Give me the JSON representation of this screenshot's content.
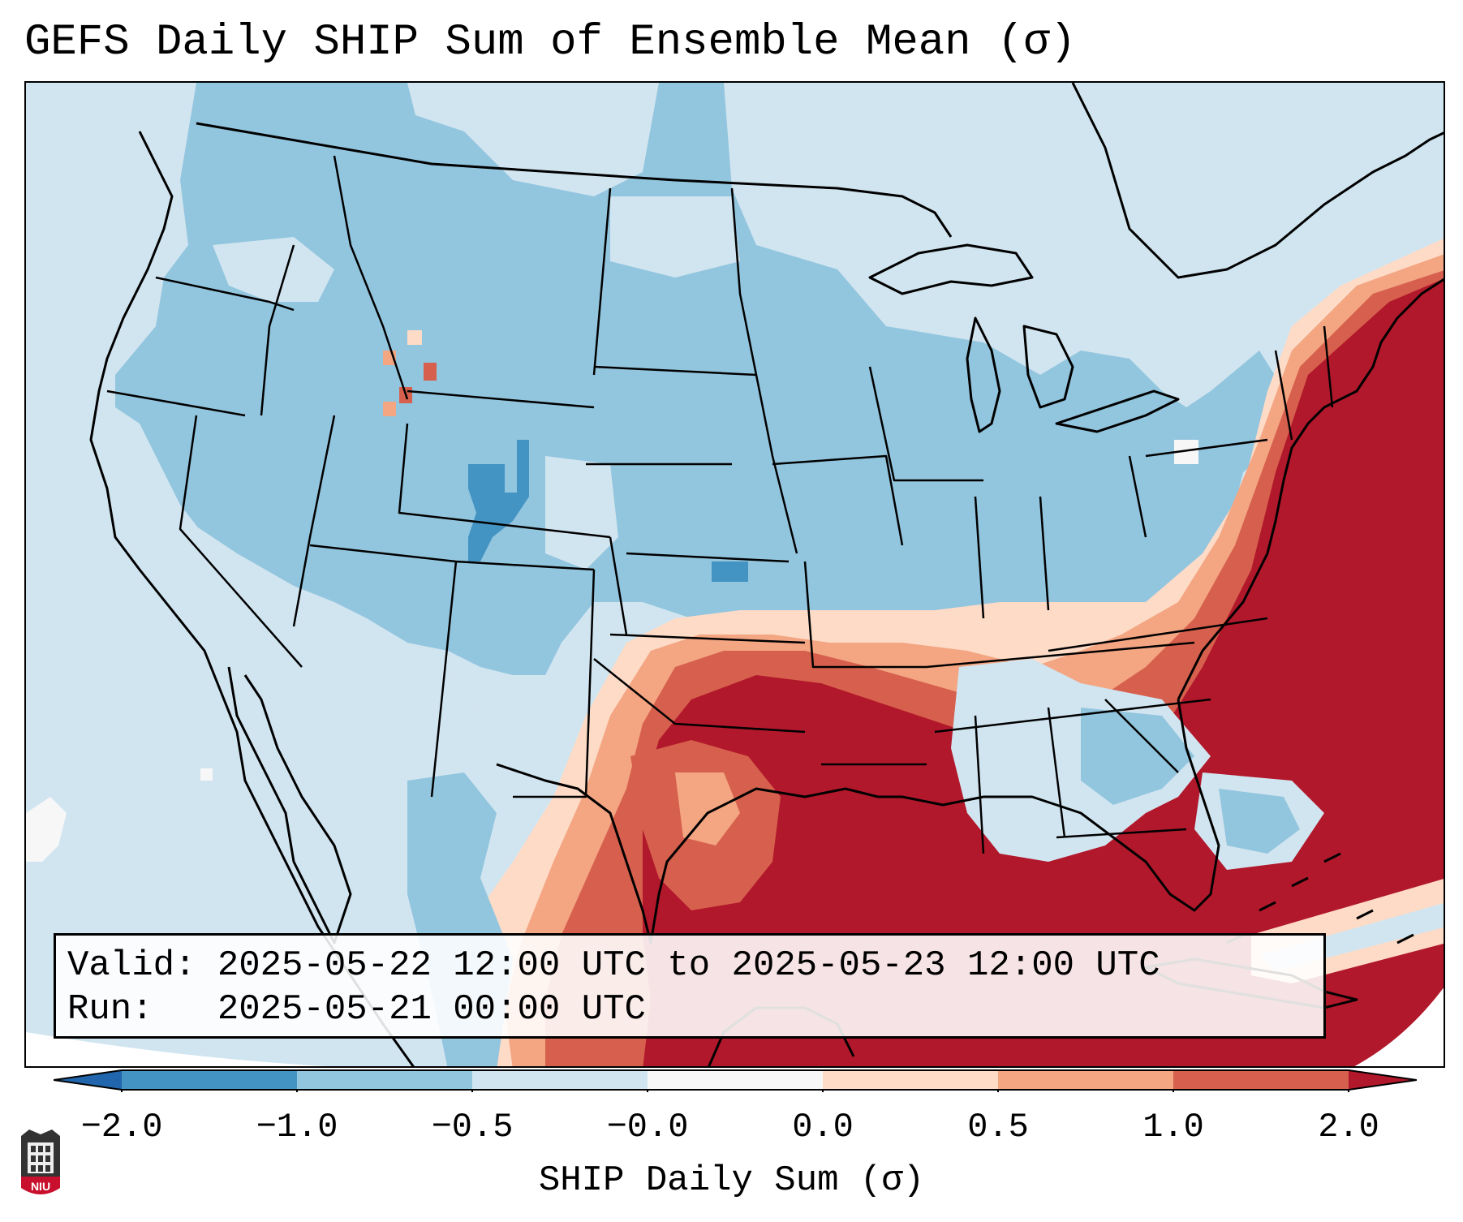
{
  "title": "GEFS Daily SHIP Sum of Ensemble Mean (σ)",
  "info_box": {
    "valid_line": "Valid: 2025-05-22 12:00 UTC to 2025-05-23 12:00 UTC",
    "run_line": "Run:   2025-05-21 00:00 UTC"
  },
  "colorbar": {
    "label": "SHIP Daily Sum (σ)",
    "ticks": [
      "−2.0",
      "−1.0",
      "−0.5",
      "−0.0",
      "0.0",
      "0.5",
      "1.0",
      "2.0"
    ],
    "colors": [
      "#4393c3",
      "#92c5de",
      "#d1e5f0",
      "#f7f7f7",
      "#fddbc7",
      "#f4a582",
      "#d6604d"
    ],
    "under_color": "#2166ac",
    "over_color": "#b2182b"
  },
  "map": {
    "background_color": "#d1e5f0",
    "category_colors": {
      "light_blue": "#d1e5f0",
      "medium_blue": "#92c5de",
      "dark_blue": "#4393c3",
      "white": "#f7f7f7",
      "pale_red": "#fddbc7",
      "light_red": "#f4a582",
      "red": "#d6604d",
      "dark_red": "#b2182b"
    }
  },
  "logo": {
    "text": "NIU",
    "color": "#c8102e"
  }
}
